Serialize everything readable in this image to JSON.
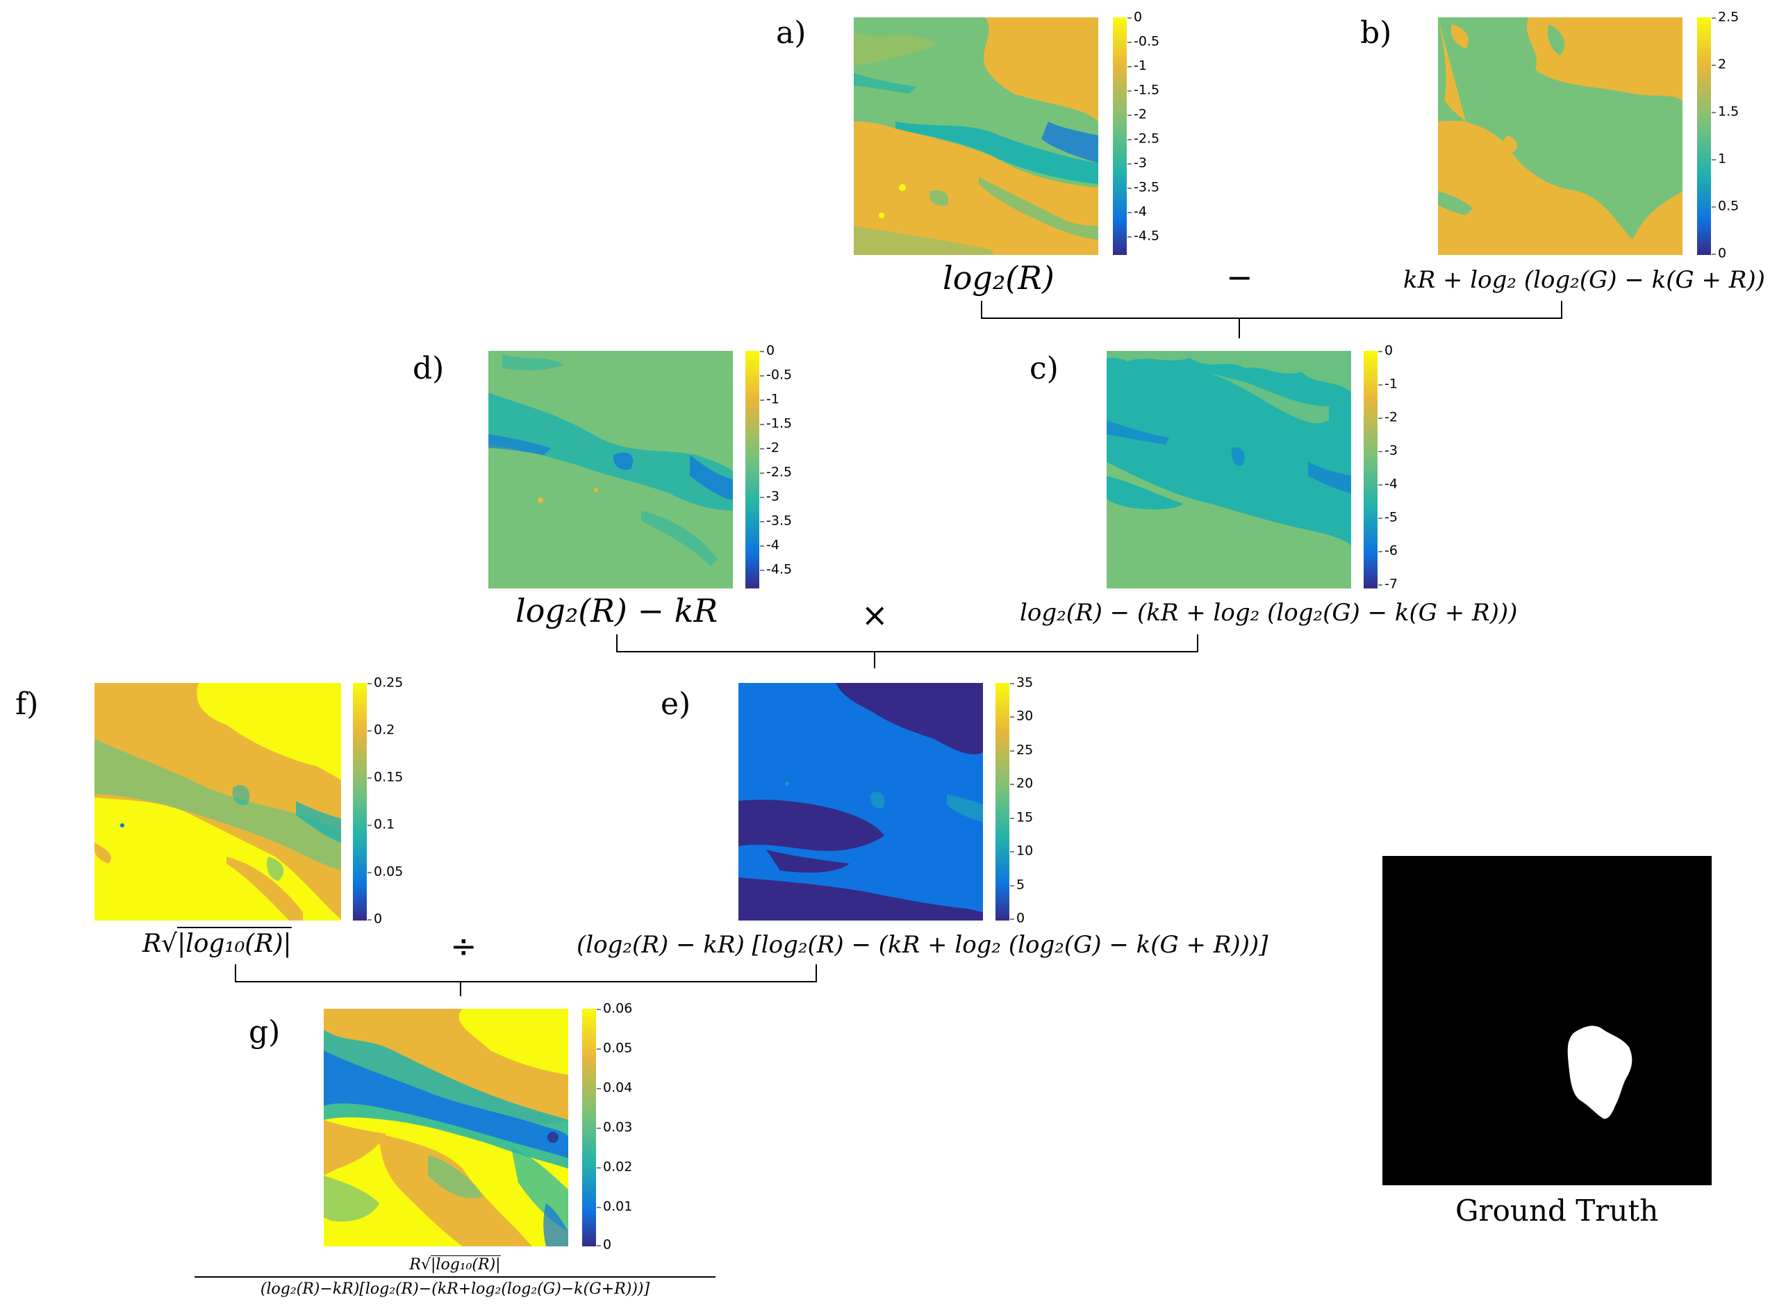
{
  "panels": {
    "a": {
      "letter": "a)",
      "formula": "log₂(R)",
      "ticks": [
        "0",
        "-0.5",
        "-1",
        "-1.5",
        "-2",
        "-2.5",
        "-3",
        "-3.5",
        "-4",
        "-4.5"
      ]
    },
    "b": {
      "letter": "b)",
      "formula": "kR + log₂ (log₂(G) − k(G + R))",
      "ticks": [
        "2.5",
        "2",
        "1.5",
        "1",
        "0.5",
        "0"
      ]
    },
    "c": {
      "letter": "c)",
      "formula": "log₂(R) − (kR + log₂ (log₂(G) − k(G + R)))",
      "ticks": [
        "0",
        "-1",
        "-2",
        "-3",
        "-4",
        "-5",
        "-6",
        "-7"
      ]
    },
    "d": {
      "letter": "d)",
      "formula": "log₂(R) − kR",
      "ticks": [
        "0",
        "-0.5",
        "-1",
        "-1.5",
        "-2",
        "-2.5",
        "-3",
        "-3.5",
        "-4",
        "-4.5"
      ]
    },
    "e": {
      "letter": "e)",
      "formula": "(log₂(R) − kR) [log₂(R) − (kR + log₂ (log₂(G) − k(G + R)))]",
      "ticks": [
        "35",
        "30",
        "25",
        "20",
        "15",
        "10",
        "5",
        "0"
      ]
    },
    "f": {
      "letter": "f)",
      "formula_prefix": "R",
      "formula_radicand": "|log₁₀(R)|",
      "ticks": [
        "0.25",
        "0.2",
        "0.15",
        "0.1",
        "0.05",
        "0"
      ]
    },
    "g": {
      "letter": "g)",
      "numerator_prefix": "R",
      "numerator_radicand": "|log₁₀(R)|",
      "denominator": "(log₂(R)−kR)[log₂(R)−(kR+log₂(log₂(G)−k(G+R)))]",
      "ticks": [
        "0.06",
        "0.05",
        "0.04",
        "0.03",
        "0.02",
        "0.01",
        "0"
      ]
    }
  },
  "operators": {
    "minus": "−",
    "times": "×",
    "divide": "÷"
  },
  "ground_truth": {
    "label": "Ground Truth"
  },
  "colormap": {
    "yellow": "#f9fb0e",
    "orange": "#eab63a",
    "green": "#77c27a",
    "teal": "#23b3aa",
    "blue": "#0f74e0",
    "navy": "#352a87"
  }
}
